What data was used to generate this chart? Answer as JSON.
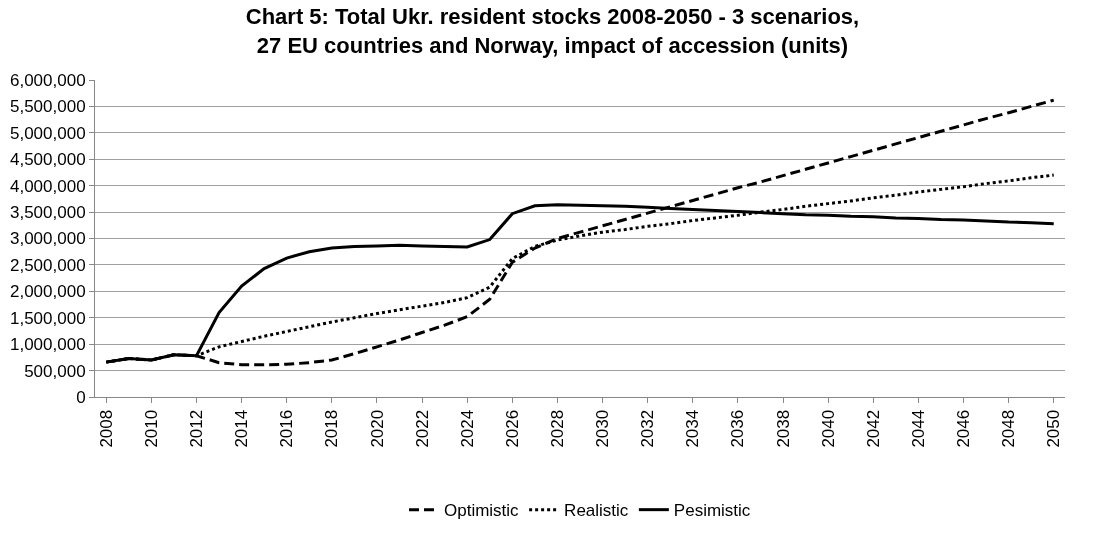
{
  "chart_data": {
    "type": "line",
    "title": "Chart 5: Total Ukr. resident stocks 2008-2050 - 3 scenarios,\n27 EU countries and Norway, impact of accession (units)",
    "x": [
      2008,
      2009,
      2010,
      2011,
      2012,
      2013,
      2014,
      2015,
      2016,
      2017,
      2018,
      2019,
      2020,
      2021,
      2022,
      2023,
      2024,
      2025,
      2026,
      2027,
      2028,
      2029,
      2030,
      2031,
      2032,
      2033,
      2034,
      2035,
      2036,
      2037,
      2038,
      2039,
      2040,
      2041,
      2042,
      2043,
      2044,
      2045,
      2046,
      2047,
      2048,
      2049,
      2050
    ],
    "series": [
      {
        "name": "Optimistic",
        "color": "#000000",
        "line_style": "dashed",
        "values": [
          660000,
          730000,
          700000,
          800000,
          780000,
          650000,
          610000,
          610000,
          620000,
          650000,
          700000,
          820000,
          950000,
          1080000,
          1220000,
          1360000,
          1520000,
          1850000,
          2550000,
          2820000,
          3000000,
          3120000,
          3240000,
          3360000,
          3480000,
          3600000,
          3720000,
          3840000,
          3960000,
          4070000,
          4190000,
          4310000,
          4430000,
          4550000,
          4670000,
          4790000,
          4910000,
          5030000,
          5150000,
          5270000,
          5380000,
          5500000,
          5620000
        ]
      },
      {
        "name": "Realistic",
        "color": "#000000",
        "line_style": "dotted",
        "values": [
          660000,
          730000,
          700000,
          800000,
          780000,
          950000,
          1050000,
          1150000,
          1240000,
          1330000,
          1420000,
          1500000,
          1580000,
          1650000,
          1720000,
          1790000,
          1880000,
          2080000,
          2620000,
          2850000,
          2970000,
          3050000,
          3120000,
          3170000,
          3230000,
          3280000,
          3340000,
          3390000,
          3440000,
          3500000,
          3550000,
          3610000,
          3660000,
          3710000,
          3770000,
          3820000,
          3880000,
          3930000,
          3980000,
          4040000,
          4090000,
          4150000,
          4200000
        ]
      },
      {
        "name": "Pesimistic",
        "color": "#000000",
        "line_style": "solid",
        "values": [
          660000,
          730000,
          700000,
          800000,
          780000,
          1600000,
          2100000,
          2430000,
          2630000,
          2750000,
          2820000,
          2850000,
          2860000,
          2870000,
          2860000,
          2850000,
          2840000,
          2980000,
          3470000,
          3620000,
          3640000,
          3630000,
          3620000,
          3610000,
          3590000,
          3570000,
          3550000,
          3530000,
          3510000,
          3490000,
          3470000,
          3450000,
          3440000,
          3420000,
          3410000,
          3390000,
          3380000,
          3360000,
          3350000,
          3330000,
          3310000,
          3300000,
          3280000
        ]
      }
    ],
    "xlim": [
      2007.5,
      2050.5
    ],
    "xticks": [
      {
        "value": 2008,
        "label": "2008"
      },
      {
        "value": 2010,
        "label": "2010"
      },
      {
        "value": 2012,
        "label": "2012"
      },
      {
        "value": 2014,
        "label": "2014"
      },
      {
        "value": 2016,
        "label": "2016"
      },
      {
        "value": 2018,
        "label": "2018"
      },
      {
        "value": 2020,
        "label": "2020"
      },
      {
        "value": 2022,
        "label": "2022"
      },
      {
        "value": 2024,
        "label": "2024"
      },
      {
        "value": 2026,
        "label": "2026"
      },
      {
        "value": 2028,
        "label": "2028"
      },
      {
        "value": 2030,
        "label": "2030"
      },
      {
        "value": 2032,
        "label": "2032"
      },
      {
        "value": 2034,
        "label": "2034"
      },
      {
        "value": 2036,
        "label": "2036"
      },
      {
        "value": 2038,
        "label": "2038"
      },
      {
        "value": 2040,
        "label": "2040"
      },
      {
        "value": 2042,
        "label": "2042"
      },
      {
        "value": 2044,
        "label": "2044"
      },
      {
        "value": 2046,
        "label": "2046"
      },
      {
        "value": 2048,
        "label": "2048"
      },
      {
        "value": 2050,
        "label": "2050"
      }
    ],
    "ylim": [
      0,
      6000000
    ],
    "yticks": [
      0,
      {
        "value": 500000,
        "label": "500,000"
      },
      {
        "value": 1000000,
        "label": "1,000,000"
      },
      {
        "value": 1500000,
        "label": "1,500,000"
      },
      {
        "value": 2000000,
        "label": "2,000,000"
      },
      {
        "value": 2500000,
        "label": "2,500,000"
      },
      {
        "value": 3000000,
        "label": "3,000,000"
      },
      {
        "value": 3500000,
        "label": "3,500,000"
      },
      {
        "value": 4000000,
        "label": "4,000,000"
      },
      {
        "value": 4500000,
        "label": "4,500,000"
      },
      {
        "value": 5000000,
        "label": "5,000,000"
      },
      {
        "value": 5500000,
        "label": "5,500,000"
      },
      {
        "value": 6000000,
        "label": "6,000,000"
      }
    ],
    "grid": "y",
    "legend": "bottom",
    "marker": "none"
  }
}
